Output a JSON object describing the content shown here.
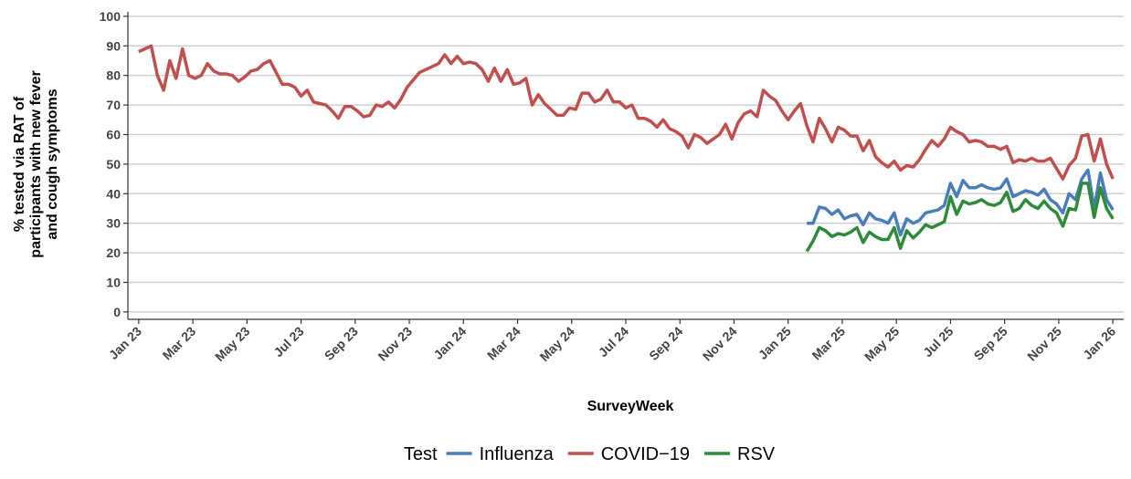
{
  "chart_data": {
    "type": "line",
    "xlabel": "SurveyWeek",
    "ylabel": [
      "% tested via RAT of",
      "participants with new fever",
      "and cough symptoms"
    ],
    "legend_title": "Test",
    "legend_position": "bottom",
    "grid": true,
    "xlim": [
      -0.4,
      36.4
    ],
    "ylim": [
      -2.5,
      101.5
    ],
    "yticks": [
      0,
      10,
      20,
      30,
      40,
      50,
      60,
      70,
      80,
      90,
      100
    ],
    "xticks": [
      {
        "value": 0,
        "label": "Jan 23"
      },
      {
        "value": 2,
        "label": "Mar 23"
      },
      {
        "value": 4,
        "label": "May 23"
      },
      {
        "value": 6,
        "label": "Jul 23"
      },
      {
        "value": 8,
        "label": "Sep 23"
      },
      {
        "value": 10,
        "label": "Nov 23"
      },
      {
        "value": 12,
        "label": "Jan 24"
      },
      {
        "value": 14,
        "label": "Mar 24"
      },
      {
        "value": 16,
        "label": "May 24"
      },
      {
        "value": 18,
        "label": "Jul 24"
      },
      {
        "value": 20,
        "label": "Sep 24"
      },
      {
        "value": 22,
        "label": "Nov 24"
      },
      {
        "value": 24,
        "label": "Jan 25"
      },
      {
        "value": 26,
        "label": "Mar 25"
      },
      {
        "value": 28,
        "label": "May 25"
      },
      {
        "value": 30,
        "label": "Jul 25"
      },
      {
        "value": 32,
        "label": "Sep 25"
      },
      {
        "value": 34,
        "label": "Nov 25"
      },
      {
        "value": 36,
        "label": "Jan 26"
      }
    ],
    "x": [
      0,
      0.23,
      0.46,
      0.69,
      0.92,
      1.15,
      1.38,
      1.62,
      1.85,
      2.08,
      2.31,
      2.54,
      2.77,
      3,
      3.23,
      3.46,
      3.69,
      3.92,
      4.15,
      4.38,
      4.62,
      4.85,
      5.08,
      5.31,
      5.54,
      5.77,
      6,
      6.23,
      6.46,
      6.69,
      6.92,
      7.15,
      7.38,
      7.62,
      7.85,
      8.08,
      8.31,
      8.54,
      8.77,
      9,
      9.23,
      9.46,
      9.69,
      9.92,
      10.15,
      10.38,
      10.62,
      10.85,
      11.08,
      11.31,
      11.54,
      11.77,
      12,
      12.23,
      12.46,
      12.69,
      12.92,
      13.15,
      13.38,
      13.62,
      13.85,
      14.08,
      14.31,
      14.54,
      14.77,
      15,
      15.23,
      15.46,
      15.69,
      15.92,
      16.15,
      16.38,
      16.62,
      16.85,
      17.08,
      17.31,
      17.54,
      17.77,
      18,
      18.23,
      18.46,
      18.69,
      18.92,
      19.15,
      19.38,
      19.62,
      19.85,
      20.08,
      20.31,
      20.54,
      20.77,
      21,
      21.23,
      21.46,
      21.69,
      21.92,
      22.15,
      22.38,
      22.62,
      22.85,
      23.08,
      23.31,
      23.54,
      23.77,
      24,
      24.23,
      24.46,
      24.69,
      24.92,
      25.15,
      25.38,
      25.62,
      25.85,
      26.08,
      26.31,
      26.54,
      26.77,
      27,
      27.23,
      27.46,
      27.69,
      27.92,
      28.15,
      28.38,
      28.62,
      28.85,
      29.08,
      29.31,
      29.54,
      29.77,
      30,
      30.23,
      30.46,
      30.69,
      30.92,
      31.15,
      31.38,
      31.62,
      31.85,
      32.08,
      32.31,
      32.54,
      32.77,
      33,
      33.23,
      33.46,
      33.69,
      33.92,
      34.15,
      34.38,
      34.62,
      34.85,
      35.08,
      35.31,
      35.54,
      35.77,
      36
    ],
    "series": [
      {
        "name": "Influenza",
        "color": "#4A7EBB",
        "values": [
          null,
          null,
          null,
          null,
          null,
          null,
          null,
          null,
          null,
          null,
          null,
          null,
          null,
          null,
          null,
          null,
          null,
          null,
          null,
          null,
          null,
          null,
          null,
          null,
          null,
          null,
          null,
          null,
          null,
          null,
          null,
          null,
          null,
          null,
          null,
          null,
          null,
          null,
          null,
          null,
          null,
          null,
          null,
          null,
          null,
          null,
          null,
          null,
          null,
          null,
          null,
          null,
          null,
          null,
          null,
          null,
          null,
          null,
          null,
          null,
          null,
          null,
          null,
          null,
          null,
          null,
          null,
          null,
          null,
          null,
          null,
          null,
          null,
          null,
          null,
          null,
          null,
          null,
          null,
          null,
          null,
          null,
          null,
          null,
          null,
          null,
          null,
          null,
          null,
          null,
          null,
          null,
          null,
          null,
          null,
          null,
          null,
          null,
          null,
          null,
          null,
          null,
          null,
          null,
          null,
          null,
          null,
          30,
          30,
          35.5,
          35,
          33,
          34.5,
          31.5,
          32.5,
          33,
          29.5,
          33.5,
          31.5,
          31,
          30,
          33.5,
          26,
          31.5,
          30,
          31,
          33.5,
          34,
          34.5,
          36,
          43.5,
          39,
          44.5,
          42,
          42,
          43,
          42,
          41.5,
          42,
          45,
          39,
          40,
          41,
          40.5,
          39.5,
          41.5,
          38,
          36.5,
          33.5,
          40,
          38,
          45,
          48,
          35,
          47,
          38,
          34.5
        ]
      },
      {
        "name": "COVID−19",
        "color": "#C0504D",
        "values": [
          88,
          89,
          90,
          80,
          75,
          85,
          79,
          89,
          80,
          79,
          80,
          84,
          81.5,
          80.5,
          80.5,
          80,
          78,
          79.5,
          81.5,
          82,
          84,
          85,
          81,
          77,
          77,
          76,
          73,
          75,
          71,
          70.5,
          70,
          68,
          65.5,
          69.5,
          69.5,
          68,
          66,
          66.5,
          70,
          69.5,
          71,
          69,
          72,
          76,
          78.5,
          81,
          82,
          83,
          84,
          87,
          84,
          86.5,
          84,
          84.5,
          84,
          82,
          78,
          82.5,
          78,
          82,
          77,
          77.5,
          79,
          70,
          73.5,
          70.5,
          68.5,
          66.5,
          66.5,
          69,
          68.5,
          74,
          74,
          71,
          72,
          75,
          71,
          71,
          69,
          70,
          65.5,
          65.5,
          64.5,
          62.5,
          65,
          62,
          61,
          59.5,
          55.5,
          60,
          59,
          57,
          58.5,
          60,
          63.5,
          58.5,
          64,
          67,
          68,
          66,
          75,
          73,
          71.5,
          68,
          65,
          68,
          70.5,
          63,
          57.5,
          65.5,
          62,
          57.5,
          62.5,
          61.5,
          59.5,
          59.5,
          54.5,
          58,
          52.5,
          50.5,
          49,
          51,
          48,
          49.5,
          49,
          51.5,
          55,
          58,
          56,
          58.5,
          62.5,
          61,
          60,
          57.5,
          58,
          57.5,
          56,
          56,
          55,
          56,
          50.5,
          51.5,
          51,
          52,
          51,
          51,
          52,
          48.5,
          45,
          49.5,
          52,
          59.5,
          60,
          51,
          58.5,
          50,
          45
        ]
      },
      {
        "name": "RSV",
        "color": "#2E8B3A",
        "values": [
          null,
          null,
          null,
          null,
          null,
          null,
          null,
          null,
          null,
          null,
          null,
          null,
          null,
          null,
          null,
          null,
          null,
          null,
          null,
          null,
          null,
          null,
          null,
          null,
          null,
          null,
          null,
          null,
          null,
          null,
          null,
          null,
          null,
          null,
          null,
          null,
          null,
          null,
          null,
          null,
          null,
          null,
          null,
          null,
          null,
          null,
          null,
          null,
          null,
          null,
          null,
          null,
          null,
          null,
          null,
          null,
          null,
          null,
          null,
          null,
          null,
          null,
          null,
          null,
          null,
          null,
          null,
          null,
          null,
          null,
          null,
          null,
          null,
          null,
          null,
          null,
          null,
          null,
          null,
          null,
          null,
          null,
          null,
          null,
          null,
          null,
          null,
          null,
          null,
          null,
          null,
          null,
          null,
          null,
          null,
          null,
          null,
          null,
          null,
          null,
          null,
          null,
          null,
          null,
          null,
          null,
          null,
          20.5,
          24,
          28.5,
          27.5,
          25.5,
          26.5,
          26,
          27,
          28.5,
          23.5,
          27,
          25.5,
          24.5,
          24.5,
          28.5,
          21.5,
          27.5,
          25,
          27,
          29.5,
          28.5,
          29.5,
          30.5,
          39,
          33,
          37.5,
          36.5,
          37,
          38,
          36.5,
          36,
          37,
          40.5,
          34,
          35,
          38,
          36,
          35,
          37.5,
          35,
          33.5,
          29,
          35,
          34.5,
          43.5,
          43.5,
          32,
          42,
          35,
          31.5
        ]
      }
    ]
  }
}
